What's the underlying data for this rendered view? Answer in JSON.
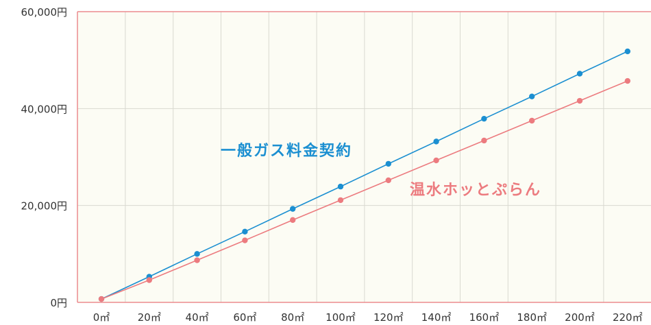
{
  "chart_data": {
    "type": "line",
    "x_labels": [
      "0㎡",
      "20㎡",
      "40㎡",
      "60㎡",
      "80㎡",
      "100㎡",
      "120㎡",
      "140㎡",
      "160㎡",
      "180㎡",
      "200㎡",
      "220㎡"
    ],
    "x": [
      0,
      20,
      40,
      60,
      80,
      100,
      120,
      140,
      160,
      180,
      200,
      220
    ],
    "y_ticks": [
      0,
      20000,
      40000,
      60000
    ],
    "y_tick_labels": [
      "0円",
      "20,000円",
      "40,000円",
      "60,000円"
    ],
    "ylim": [
      0,
      60000
    ],
    "grid": true,
    "series": [
      {
        "name": "一般ガス料金契約",
        "color": "#1b8fd1",
        "values": [
          700,
          5300,
          10000,
          14600,
          19300,
          23900,
          28600,
          33200,
          37900,
          42500,
          47200,
          51800
        ]
      },
      {
        "name": "温水ホッとぷらん",
        "color": "#ec7b7f",
        "values": [
          700,
          4600,
          8700,
          12800,
          17000,
          21100,
          25200,
          29300,
          33400,
          37500,
          41600,
          45700
        ]
      }
    ],
    "colors": {
      "plot_background": "#fcfcf4",
      "frame": "#ec8b8e",
      "grid": "#d9d9d0"
    }
  }
}
